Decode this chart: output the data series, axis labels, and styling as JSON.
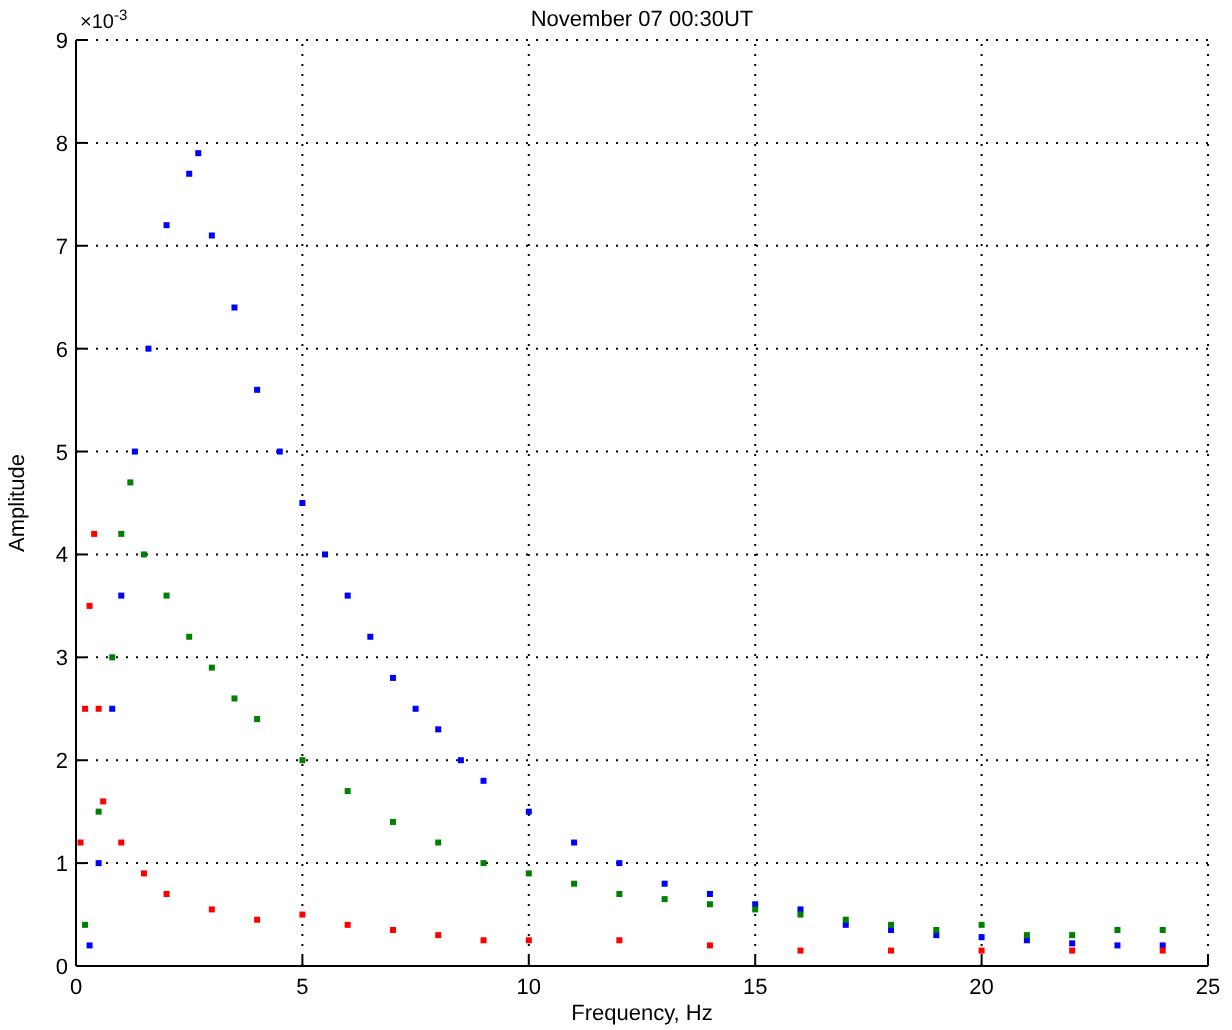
{
  "chart_data": {
    "type": "scatter",
    "title": "November 07 00:30UT",
    "xlabel": "Frequency, Hz",
    "ylabel": "Amplitude",
    "annotations": [
      "×10$^{-3}$"
    ],
    "xlim": [
      0,
      25
    ],
    "xticks": [
      0,
      5,
      10,
      15,
      20,
      25
    ],
    "ylim": [
      0,
      9
    ],
    "yticks": [
      0,
      1,
      2,
      3,
      4,
      5,
      6,
      7,
      8,
      9
    ],
    "grid": true,
    "marker": "square",
    "series": [
      {
        "color": "#0000ff",
        "x": [
          0.3,
          0.5,
          0.8,
          1,
          1.3,
          1.6,
          2,
          2.5,
          2.7,
          3,
          3.5,
          4,
          4.5,
          5,
          5.5,
          6,
          6.5,
          7,
          7.5,
          8,
          8.5,
          9,
          10,
          11,
          12,
          13,
          14,
          15,
          16,
          17,
          18,
          19,
          20,
          21,
          22,
          23,
          24
        ],
        "values": [
          0.2,
          1.0,
          2.5,
          3.6,
          5.0,
          6.0,
          7.2,
          7.7,
          7.9,
          7.1,
          6.4,
          5.6,
          5.0,
          4.5,
          4.0,
          3.6,
          3.2,
          2.8,
          2.5,
          2.3,
          2.0,
          1.8,
          1.5,
          1.2,
          1.0,
          0.8,
          0.7,
          0.6,
          0.55,
          0.4,
          0.35,
          0.3,
          0.28,
          0.25,
          0.22,
          0.2,
          0.2
        ]
      },
      {
        "color": "#008000",
        "x": [
          0.2,
          0.5,
          0.8,
          1,
          1.2,
          1.5,
          2,
          2.5,
          3,
          3.5,
          4,
          5,
          6,
          7,
          8,
          9,
          10,
          11,
          12,
          13,
          14,
          15,
          16,
          17,
          18,
          19,
          20,
          21,
          22,
          23,
          24
        ],
        "values": [
          0.4,
          1.5,
          3.0,
          4.2,
          4.7,
          4.0,
          3.6,
          3.2,
          2.9,
          2.6,
          2.4,
          2.0,
          1.7,
          1.4,
          1.2,
          1.0,
          0.9,
          0.8,
          0.7,
          0.65,
          0.6,
          0.55,
          0.5,
          0.45,
          0.4,
          0.35,
          0.4,
          0.3,
          0.3,
          0.35,
          0.35
        ]
      },
      {
        "color": "#ff0000",
        "x": [
          0.1,
          0.2,
          0.3,
          0.4,
          0.5,
          0.6,
          1,
          1.5,
          2,
          3,
          4,
          5,
          6,
          7,
          8,
          9,
          10,
          12,
          14,
          16,
          18,
          20,
          22,
          24
        ],
        "values": [
          1.2,
          2.5,
          3.5,
          4.2,
          2.5,
          1.6,
          1.2,
          0.9,
          0.7,
          0.55,
          0.45,
          0.5,
          0.4,
          0.35,
          0.3,
          0.25,
          0.25,
          0.25,
          0.2,
          0.15,
          0.15,
          0.15,
          0.15,
          0.15
        ]
      }
    ]
  }
}
